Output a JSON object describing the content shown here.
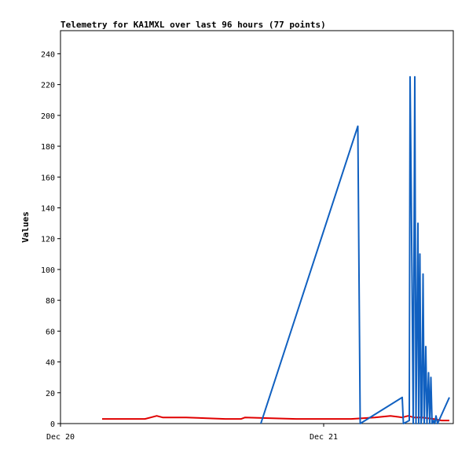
{
  "chart_data": {
    "type": "line",
    "title": "Telemetry for KA1MXL over last 96 hours (77 points)",
    "xlabel": "",
    "ylabel": "Values",
    "x_ticks": [
      "Dec 20",
      "Dec 21"
    ],
    "x_range": [
      0,
      1
    ],
    "ylim": [
      0,
      255
    ],
    "y_ticks": [
      0,
      20,
      40,
      60,
      80,
      100,
      120,
      140,
      160,
      180,
      200,
      220,
      240
    ],
    "grid": false,
    "legend": "none",
    "series": [
      {
        "color": "#e00000",
        "x": [
          0.106,
          0.2,
          0.215,
          0.23,
          0.245,
          0.26,
          0.32,
          0.42,
          0.46,
          0.47,
          0.6,
          0.74,
          0.8,
          0.84,
          0.87,
          0.885,
          0.9,
          0.92,
          0.95,
          0.97,
          0.99
        ],
        "values": [
          3,
          3,
          3,
          4,
          5,
          4,
          4,
          3,
          3,
          4,
          3,
          3,
          4,
          5,
          4,
          5,
          4,
          4,
          3,
          2,
          2
        ]
      },
      {
        "color": "#1060c0",
        "x": [
          0.51,
          0.757,
          0.763,
          0.87,
          0.873,
          0.888,
          0.89,
          0.893,
          0.898,
          0.902,
          0.905,
          0.91,
          0.912,
          0.915,
          0.918,
          0.92,
          0.923,
          0.926,
          0.93,
          0.933,
          0.937,
          0.94,
          0.943,
          0.946,
          0.95,
          0.953,
          0.956,
          0.96,
          0.99
        ],
        "values": [
          0,
          193,
          0,
          17,
          0,
          2,
          225,
          150,
          0,
          225,
          0,
          130,
          0,
          110,
          0,
          5,
          97,
          0,
          50,
          0,
          33,
          0,
          30,
          0,
          2,
          0,
          5,
          0,
          17
        ]
      }
    ]
  }
}
